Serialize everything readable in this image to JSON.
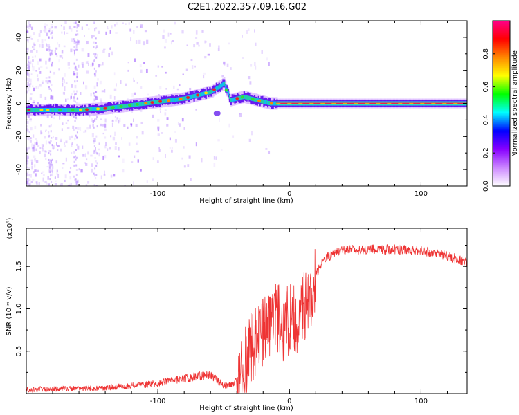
{
  "title": "C2E1.2022.357.09.16.G02",
  "chart_data": [
    {
      "type": "heatmap",
      "xlabel": "Height of straight line (km)",
      "ylabel": "Frequency (Hz)",
      "xlim": [
        -200,
        135
      ],
      "ylim": [
        -50,
        50
      ],
      "x_ticks": [
        -100,
        0,
        100
      ],
      "x_tick_labels": [
        "-100",
        "0",
        "100"
      ],
      "y_ticks": [
        -40,
        -20,
        0,
        20,
        40
      ],
      "y_tick_labels": [
        "-40",
        "-20",
        "0",
        "20",
        "40"
      ],
      "grid": false,
      "ridge": [
        {
          "x": -200,
          "y": -4
        },
        {
          "x": -180,
          "y": -4
        },
        {
          "x": -160,
          "y": -4
        },
        {
          "x": -140,
          "y": -3
        },
        {
          "x": -120,
          "y": -1
        },
        {
          "x": -100,
          "y": 1
        },
        {
          "x": -80,
          "y": 3
        },
        {
          "x": -60,
          "y": 7
        },
        {
          "x": -50,
          "y": 12
        },
        {
          "x": -45,
          "y": 2
        },
        {
          "x": -35,
          "y": 4
        },
        {
          "x": -25,
          "y": 2
        },
        {
          "x": -15,
          "y": 0
        },
        {
          "x": 0,
          "y": 0
        },
        {
          "x": 50,
          "y": 0
        },
        {
          "x": 100,
          "y": 0
        },
        {
          "x": 135,
          "y": 0
        }
      ],
      "colorbar": {
        "label": "Normalized spectral amplitude",
        "range": [
          0,
          1
        ],
        "ticks": [
          0.0,
          0.2,
          0.4,
          0.6,
          0.8
        ],
        "tick_labels": [
          "0.0",
          "0.2",
          "0.4",
          "0.6",
          "0.8"
        ],
        "colors": [
          "#ffffff",
          "#cc88ff",
          "#8800ff",
          "#0000ff",
          "#00ffff",
          "#00ff00",
          "#ffff00",
          "#ff8800",
          "#ff0000",
          "#ff0088"
        ]
      }
    },
    {
      "type": "line",
      "xlabel": "Height of straight line (km)",
      "ylabel": "SNR (10 * v/v)",
      "scale_label": "(x10",
      "scale_exp": "4",
      "scale_close": ")",
      "xlim": [
        -200,
        135
      ],
      "ylim": [
        0,
        1.95
      ],
      "x_ticks": [
        -100,
        0,
        100
      ],
      "x_tick_labels": [
        "-100",
        "0",
        "100"
      ],
      "y_ticks": [
        0.5,
        1.0,
        1.5
      ],
      "y_tick_labels": [
        "0.5",
        "1.0",
        "1.5"
      ],
      "grid": false,
      "color": "#ee3333",
      "series": [
        {
          "x": [
            -200,
            -150,
            -130,
            -100,
            -80,
            -60,
            -50,
            -45,
            -40,
            -35,
            -30,
            -25,
            -20,
            -15,
            -10,
            -5,
            0,
            5,
            10,
            15,
            20,
            25,
            30,
            35,
            40,
            50,
            60,
            70,
            80,
            90,
            100,
            110,
            120,
            135
          ],
          "values": [
            0.05,
            0.06,
            0.08,
            0.12,
            0.18,
            0.22,
            0.1,
            0.1,
            0.15,
            0.3,
            0.5,
            0.6,
            0.7,
            0.75,
            0.9,
            0.8,
            0.85,
            0.9,
            1.0,
            1.1,
            1.4,
            1.55,
            1.62,
            1.66,
            1.68,
            1.7,
            1.7,
            1.7,
            1.7,
            1.7,
            1.68,
            1.65,
            1.62,
            1.55
          ]
        }
      ]
    }
  ]
}
